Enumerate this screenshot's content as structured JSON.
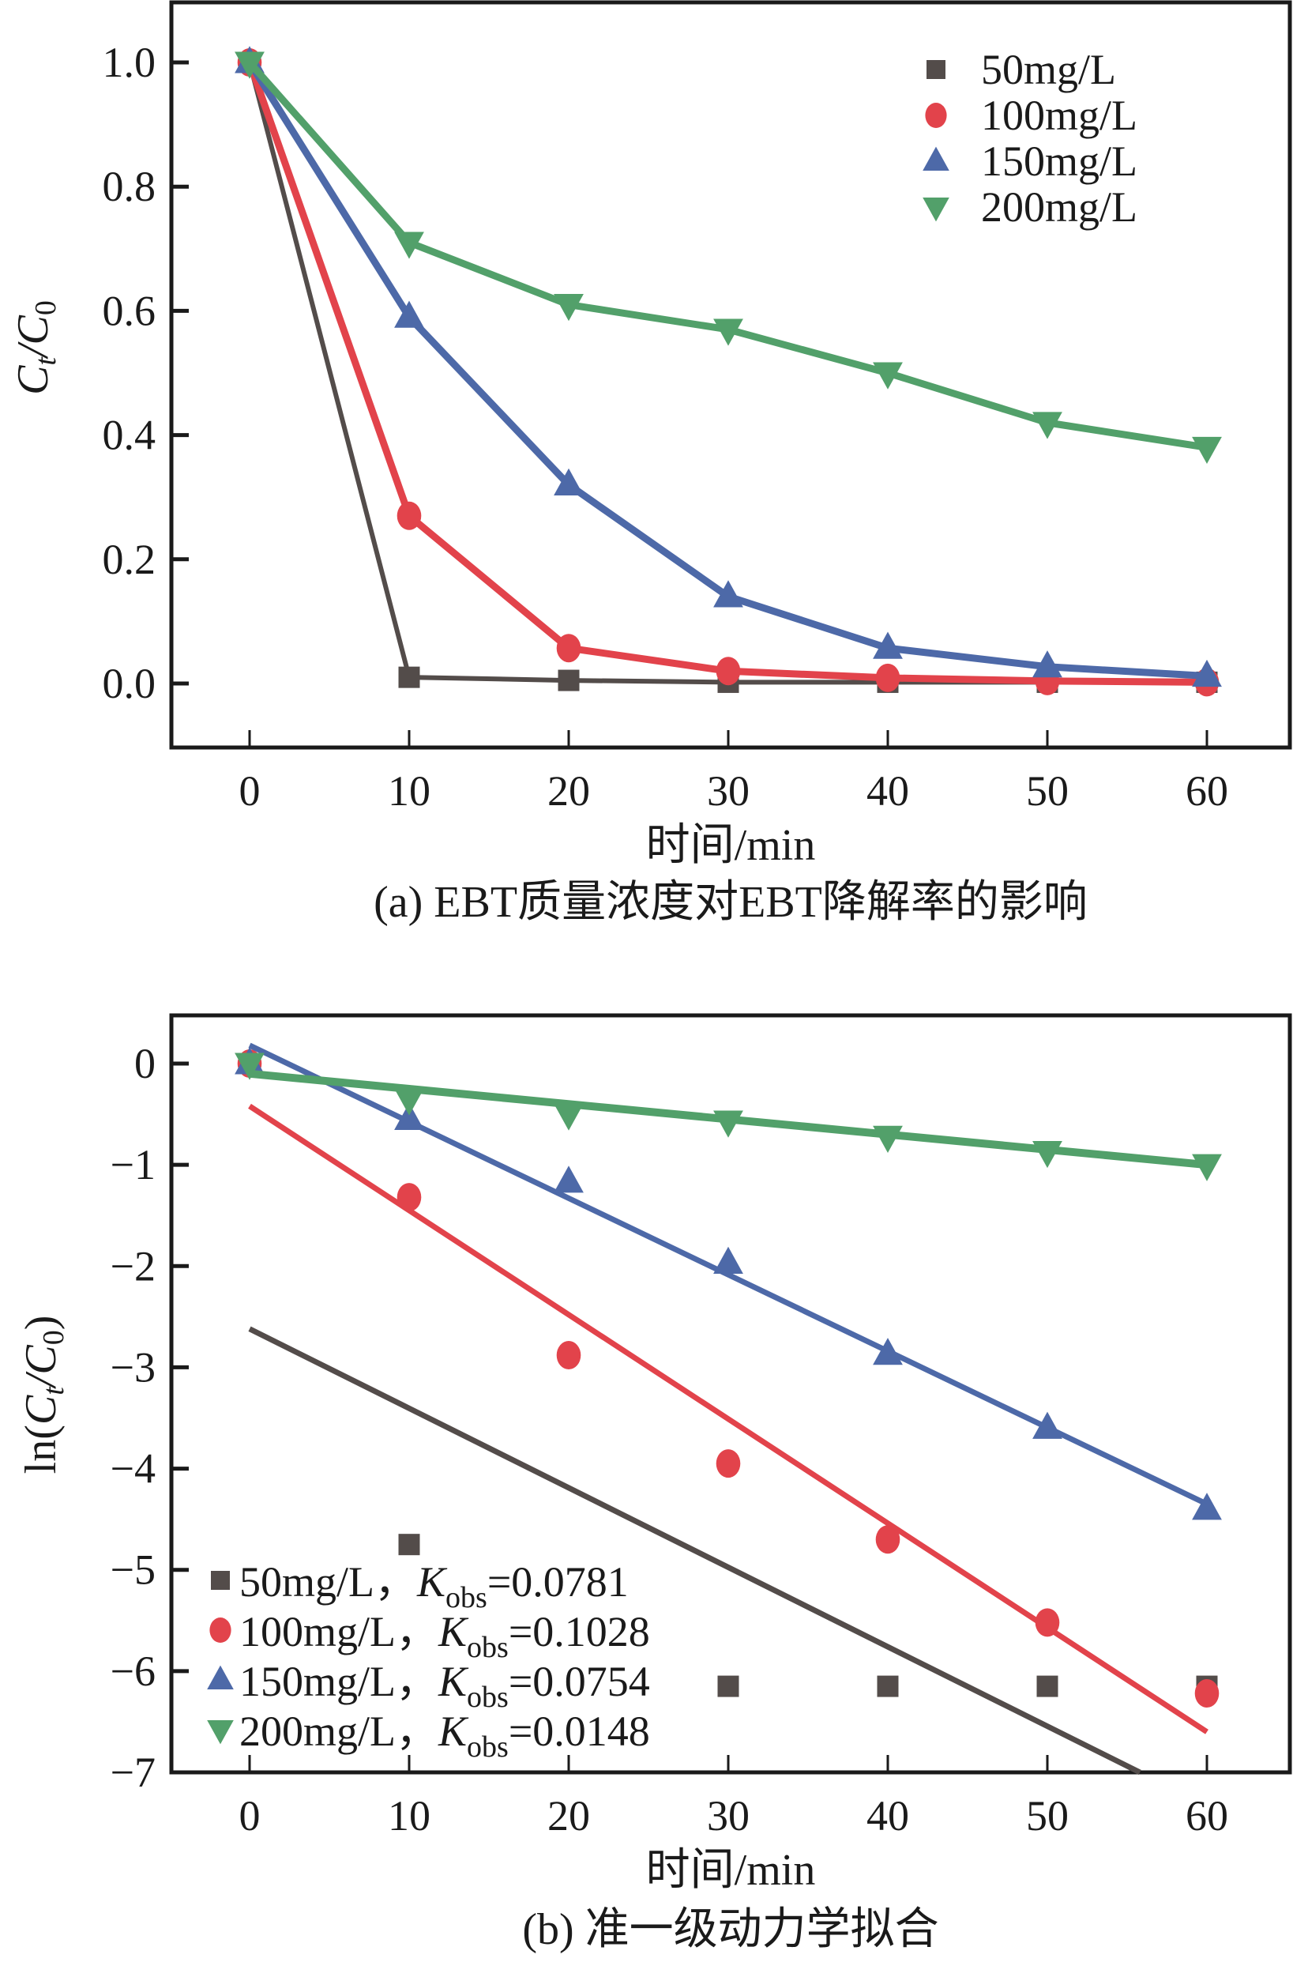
{
  "chart_data": [
    {
      "id": "a",
      "type": "line",
      "title": "(a) EBT质量浓度对EBT降解率的影响",
      "xlabel": "时间/min",
      "ylabel": "Ct/C0",
      "ylabel_parts": {
        "main": "C",
        "sub1": "t",
        "slash": "/C",
        "sub2": "0"
      },
      "xlim": [
        -5,
        65
      ],
      "ylim": [
        -0.1,
        1.1
      ],
      "x": [
        0,
        10,
        20,
        30,
        40,
        50,
        60
      ],
      "xticks": [
        0,
        10,
        20,
        30,
        40,
        50,
        60
      ],
      "xtick_labels": [
        "0",
        "10",
        "20",
        "30",
        "40",
        "50",
        "60"
      ],
      "yticks": [
        0.0,
        0.2,
        0.4,
        0.6,
        0.8,
        1.0
      ],
      "ytick_labels": [
        "0.0",
        "0.2",
        "0.4",
        "0.6",
        "0.8",
        "1.0"
      ],
      "legend_position": "top-right",
      "grid": false,
      "series": [
        {
          "name": "50mg/L",
          "marker": "square",
          "color": "#534c4a",
          "values": [
            1.0,
            0.01,
            0.005,
            0.002,
            0.002,
            0.002,
            0.002
          ]
        },
        {
          "name": "100mg/L",
          "marker": "circle",
          "color": "#e2434b",
          "values": [
            1.0,
            0.27,
            0.057,
            0.02,
            0.009,
            0.004,
            0.002
          ]
        },
        {
          "name": "150mg/L",
          "marker": "triangle-up",
          "color": "#4d69a8",
          "values": [
            1.0,
            0.59,
            0.32,
            0.14,
            0.057,
            0.027,
            0.012
          ]
        },
        {
          "name": "200mg/L",
          "marker": "triangle-down",
          "color": "#52a06a",
          "values": [
            1.0,
            0.71,
            0.61,
            0.57,
            0.5,
            0.42,
            0.38
          ]
        }
      ]
    },
    {
      "id": "b",
      "type": "scatter",
      "title": "(b) 准一级动力学拟合",
      "xlabel": "时间/min",
      "ylabel": "ln(Ct/C0)",
      "xlim": [
        -5,
        65
      ],
      "ylim": [
        -7,
        0.5
      ],
      "x": [
        0,
        10,
        20,
        30,
        40,
        50,
        60
      ],
      "xticks": [
        0,
        10,
        20,
        30,
        40,
        50,
        60
      ],
      "xtick_labels": [
        "0",
        "10",
        "20",
        "30",
        "40",
        "50",
        "60"
      ],
      "yticks": [
        0,
        -1,
        -2,
        -3,
        -4,
        -5,
        -6,
        -7
      ],
      "ytick_labels": [
        "0",
        "−1",
        "−2",
        "−3",
        "−4",
        "−5",
        "−6",
        "−7"
      ],
      "legend_position": "bottom-left",
      "grid": false,
      "series": [
        {
          "name": "50mg/L",
          "kobs_label": "K",
          "kobs_sub": "obs",
          "kobs_value": "=0.0781",
          "marker": "square",
          "color": "#534c4a",
          "values": [
            0,
            -4.75,
            null,
            -6.15,
            -6.15,
            -6.15,
            -6.15
          ],
          "fit": {
            "x": [
              0,
              55.8
            ],
            "y": [
              -2.62,
              -7.0
            ]
          }
        },
        {
          "name": "100mg/L",
          "kobs_label": "K",
          "kobs_sub": "obs",
          "kobs_value": "=0.1028",
          "marker": "circle",
          "color": "#e2434b",
          "values": [
            0,
            -1.32,
            -2.88,
            -3.95,
            -4.7,
            -5.52,
            -6.22
          ],
          "fit": {
            "x": [
              0,
              60
            ],
            "y": [
              -0.42,
              -6.6
            ]
          }
        },
        {
          "name": "150mg/L",
          "kobs_label": "K",
          "kobs_sub": "obs",
          "kobs_value": "=0.0754",
          "marker": "triangle-up",
          "color": "#4d69a8",
          "values": [
            0,
            -0.55,
            -1.17,
            -1.97,
            -2.87,
            -3.6,
            -4.4
          ],
          "fit": {
            "x": [
              0,
              60
            ],
            "y": [
              0.18,
              -4.35
            ]
          }
        },
        {
          "name": "200mg/L",
          "kobs_label": "K",
          "kobs_sub": "obs",
          "kobs_value": "=0.0148",
          "marker": "triangle-down",
          "color": "#52a06a",
          "values": [
            0,
            -0.35,
            -0.5,
            -0.57,
            -0.72,
            -0.87,
            -1.0
          ],
          "fit": {
            "x": [
              0,
              60
            ],
            "y": [
              -0.1,
              -1.0
            ]
          }
        }
      ]
    }
  ]
}
